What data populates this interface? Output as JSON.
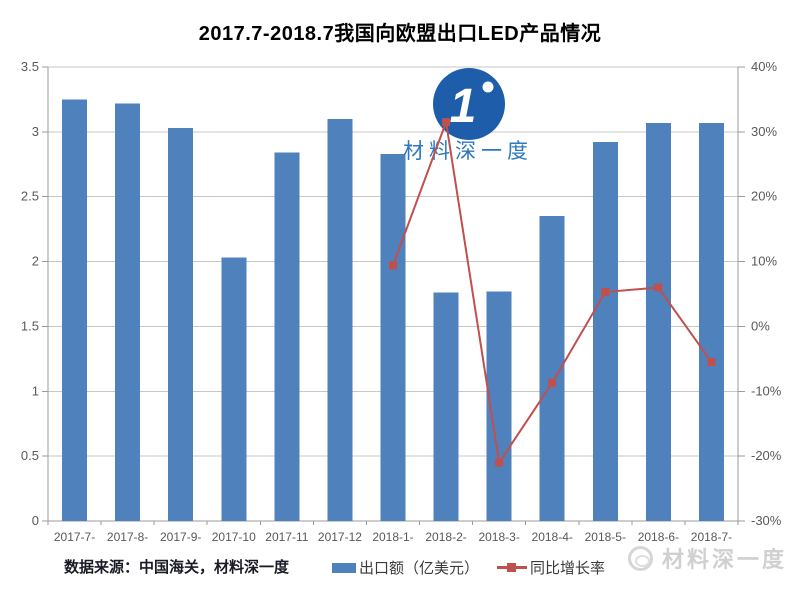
{
  "title": "2017.7-2018.7我国向欧盟出口LED产品情况",
  "footer": {
    "source": "数据来源：中国海关，材料深一度"
  },
  "watermark": {
    "logo_glyph": "1",
    "logo_text": "材料深一度",
    "footer_text": "材料深一度"
  },
  "colors": {
    "bar": "#4f81bd",
    "line": "#c0504d",
    "grid": "#c7c7c7",
    "axis": "#9b9b9b",
    "tick_label": "#595959",
    "logo_blue": "#1d5da9",
    "logo_text_blue": "#2d78c0",
    "watermark_gray": "#d0d0d0"
  },
  "chart_data": {
    "type": "bar",
    "title": "2017.7-2018.7我国向欧盟出口LED产品情况",
    "categories": [
      "2017-7-",
      "2017-8-",
      "2017-9-",
      "2017-10",
      "2017-11",
      "2017-12",
      "2018-1-",
      "2018-2-",
      "2018-3-",
      "2018-4-",
      "2018-5-",
      "2018-6-",
      "2018-7-"
    ],
    "series": [
      {
        "name": "出口额（亿美元）",
        "type": "bar",
        "axis": "left",
        "color": "#4f81bd",
        "values": [
          3.25,
          3.22,
          3.03,
          2.03,
          2.84,
          3.1,
          2.83,
          1.76,
          1.77,
          2.35,
          2.92,
          3.07,
          3.07
        ]
      },
      {
        "name": "同比增长率",
        "type": "line",
        "axis": "right",
        "color": "#c0504d",
        "values": [
          null,
          null,
          null,
          null,
          null,
          null,
          9.4,
          31.5,
          -21.0,
          -8.7,
          5.3,
          6.0,
          -5.5
        ]
      }
    ],
    "xlabel": "",
    "ylabel_left": "出口额（亿美元）",
    "ylabel_right": "同比增长率(%)",
    "left_axis": {
      "min": 0,
      "max": 3.5,
      "step": 0.5,
      "tick_labels": [
        "3.5",
        "3",
        "2.5",
        "2",
        "1.5",
        "1",
        "0.5",
        "0"
      ]
    },
    "right_axis": {
      "min": -30,
      "max": 40,
      "step": 10,
      "tick_labels": [
        "40%",
        "30%",
        "20%",
        "10%",
        "0%",
        "-10%",
        "-20%",
        "-30%"
      ]
    },
    "grid": true,
    "legend_position": "bottom"
  }
}
